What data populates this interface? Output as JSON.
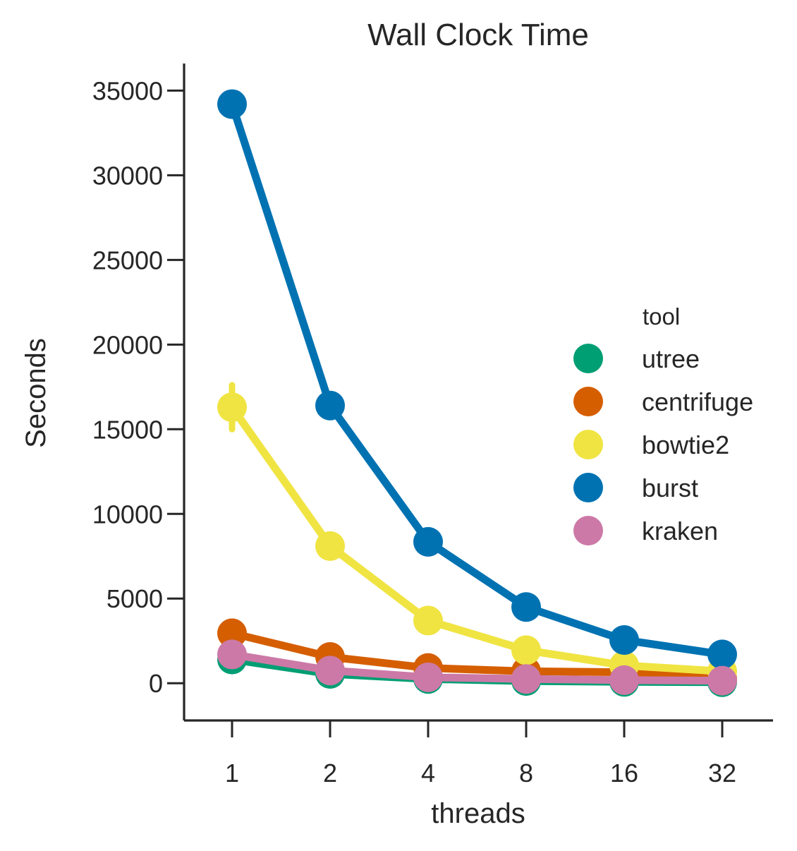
{
  "chart_data": {
    "type": "line",
    "title": "Wall Clock Time",
    "xlabel": "threads",
    "ylabel": "Seconds",
    "categories": [
      "1",
      "2",
      "4",
      "8",
      "16",
      "32"
    ],
    "ylim": [
      -2200,
      36600
    ],
    "yticks": [
      0,
      5000,
      10000,
      15000,
      20000,
      25000,
      30000,
      35000
    ],
    "ytick_labels": [
      "0",
      "5000",
      "10000",
      "15000",
      "20000",
      "25000",
      "30000",
      "35000"
    ],
    "legend": {
      "title": "tool",
      "placement": "right"
    },
    "series": [
      {
        "name": "utree",
        "color": "#009e73",
        "values": [
          1400,
          550,
          250,
          130,
          80,
          60
        ]
      },
      {
        "name": "centrifuge",
        "color": "#d55e00",
        "values": [
          2950,
          1550,
          900,
          700,
          650,
          250
        ]
      },
      {
        "name": "bowtie2",
        "color": "#f0e442",
        "values": [
          16300,
          8100,
          3700,
          1950,
          1050,
          700
        ],
        "error": [
          1300,
          0,
          0,
          0,
          0,
          0
        ]
      },
      {
        "name": "burst",
        "color": "#0072b2",
        "values": [
          34200,
          16400,
          8350,
          4500,
          2550,
          1700
        ]
      },
      {
        "name": "kraken",
        "color": "#cc79a7",
        "values": [
          1700,
          750,
          350,
          250,
          180,
          150
        ]
      }
    ]
  }
}
